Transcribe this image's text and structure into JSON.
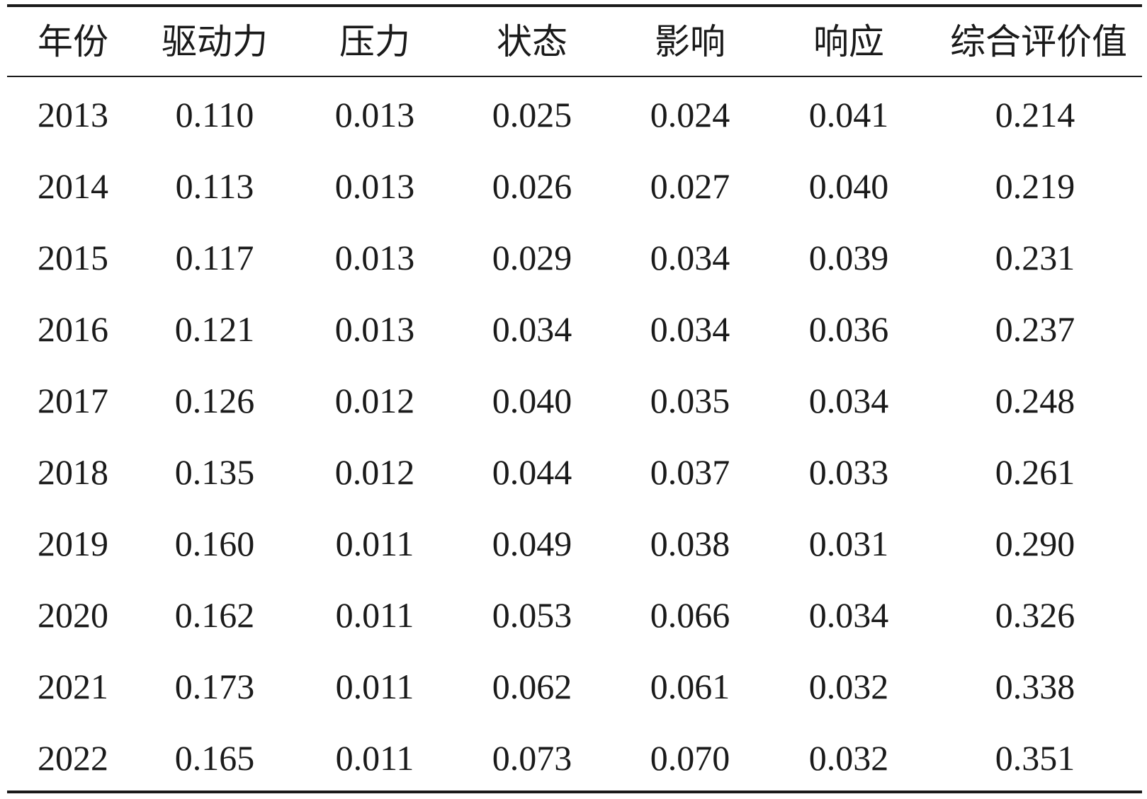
{
  "table": {
    "header": [
      "年份",
      "驱动力",
      "压力",
      "状态",
      "影响",
      "响应",
      "综合评价值"
    ],
    "rows": [
      [
        "2013",
        "0.110",
        "0.013",
        "0.025",
        "0.024",
        "0.041",
        "0.214"
      ],
      [
        "2014",
        "0.113",
        "0.013",
        "0.026",
        "0.027",
        "0.040",
        "0.219"
      ],
      [
        "2015",
        "0.117",
        "0.013",
        "0.029",
        "0.034",
        "0.039",
        "0.231"
      ],
      [
        "2016",
        "0.121",
        "0.013",
        "0.034",
        "0.034",
        "0.036",
        "0.237"
      ],
      [
        "2017",
        "0.126",
        "0.012",
        "0.040",
        "0.035",
        "0.034",
        "0.248"
      ],
      [
        "2018",
        "0.135",
        "0.012",
        "0.044",
        "0.037",
        "0.033",
        "0.261"
      ],
      [
        "2019",
        "0.160",
        "0.011",
        "0.049",
        "0.038",
        "0.031",
        "0.290"
      ],
      [
        "2020",
        "0.162",
        "0.011",
        "0.053",
        "0.066",
        "0.034",
        "0.326"
      ],
      [
        "2021",
        "0.173",
        "0.011",
        "0.062",
        "0.061",
        "0.032",
        "0.338"
      ],
      [
        "2022",
        "0.165",
        "0.011",
        "0.073",
        "0.070",
        "0.032",
        "0.351"
      ]
    ]
  }
}
